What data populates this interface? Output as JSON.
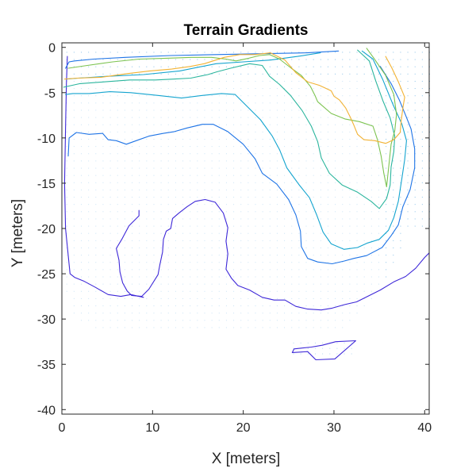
{
  "chart_data": {
    "type": "contour",
    "title": "Terrain Gradients",
    "xlabel": "X [meters]",
    "ylabel": "Y [meters]",
    "xlim": [
      0,
      40.5
    ],
    "ylim": [
      -40.5,
      0.5
    ],
    "x_ticks": [
      0,
      10,
      20,
      30,
      40
    ],
    "y_ticks": [
      0,
      -5,
      -10,
      -15,
      -20,
      -25,
      -30,
      -35,
      -40
    ],
    "grid": false,
    "box": true,
    "colors": {
      "frame": "#262626",
      "quiver": "#2b8fd6",
      "level_1": "#3e28d8",
      "level_2": "#1f74e6",
      "level_3": "#14a4cf",
      "level_4": "#2bb59d",
      "level_5": "#7cc350",
      "level_6": "#f2b233"
    },
    "contours": [
      {
        "level": 1,
        "points": [
          [
            8.5,
            -18
          ],
          [
            8.5,
            -18.6
          ],
          [
            7.4,
            -19.7
          ],
          [
            6.6,
            -21.2
          ],
          [
            6,
            -22.2
          ],
          [
            6.3,
            -23.5
          ],
          [
            6.4,
            -24.8
          ],
          [
            6.7,
            -26
          ],
          [
            7.2,
            -26.9
          ],
          [
            7.7,
            -27.4
          ],
          [
            8.8,
            -27.5
          ],
          [
            9.6,
            -26.7
          ],
          [
            10.6,
            -25.1
          ],
          [
            10.8,
            -24
          ],
          [
            11.1,
            -22.6
          ],
          [
            11.2,
            -21.2
          ],
          [
            11.5,
            -20.3
          ],
          [
            12,
            -20
          ],
          [
            12.2,
            -18.9
          ],
          [
            12.9,
            -18.3
          ],
          [
            13.8,
            -17.6
          ],
          [
            14.7,
            -17
          ],
          [
            15.8,
            -16.8
          ],
          [
            16.9,
            -17.1
          ],
          [
            17.8,
            -18.3
          ],
          [
            18.3,
            -19.9
          ],
          [
            18.1,
            -21.4
          ],
          [
            18.3,
            -22.8
          ],
          [
            18.1,
            -24.5
          ],
          [
            18.7,
            -25.5
          ],
          [
            19.4,
            -26.3
          ],
          [
            20.7,
            -26.8
          ],
          [
            22.1,
            -27.6
          ],
          [
            23.4,
            -27.9
          ],
          [
            24.6,
            -27.9
          ],
          [
            25.8,
            -28.6
          ],
          [
            27.1,
            -28.9
          ],
          [
            28.6,
            -29
          ],
          [
            29.8,
            -28.8
          ],
          [
            31.2,
            -28.4
          ],
          [
            32.5,
            -28.1
          ],
          [
            33.7,
            -27.5
          ],
          [
            35.1,
            -26.8
          ],
          [
            36.6,
            -25.9
          ],
          [
            37.9,
            -25.3
          ],
          [
            39,
            -24.4
          ],
          [
            40,
            -23.2
          ],
          [
            40.5,
            -22.7
          ]
        ]
      },
      {
        "level": 1,
        "points": [
          [
            0.6,
            -1
          ],
          [
            0.5,
            -4
          ],
          [
            0.4,
            -9
          ],
          [
            0.3,
            -15
          ],
          [
            0.4,
            -20
          ],
          [
            0.9,
            -25
          ],
          [
            1.4,
            -25.4
          ],
          [
            2.4,
            -25.8
          ],
          [
            3.7,
            -26.5
          ],
          [
            5.1,
            -27.3
          ],
          [
            6.5,
            -27.5
          ],
          [
            7.6,
            -27.3
          ],
          [
            9,
            -27.6
          ]
        ]
      },
      {
        "level": 1,
        "points": [
          [
            25.4,
            -33.7
          ],
          [
            27.1,
            -33.6
          ],
          [
            28,
            -34.5
          ],
          [
            30.1,
            -34.4
          ],
          [
            32.4,
            -32.4
          ],
          [
            30.2,
            -32.5
          ],
          [
            28.7,
            -32.9
          ],
          [
            27.5,
            -33.1
          ],
          [
            25.6,
            -33.3
          ],
          [
            25.4,
            -33.7
          ]
        ]
      },
      {
        "level": 2,
        "points": [
          [
            0.7,
            -12
          ],
          [
            0.8,
            -10
          ],
          [
            1.6,
            -9.4
          ],
          [
            3,
            -9.6
          ],
          [
            4.5,
            -9.5
          ],
          [
            5.1,
            -10.2
          ],
          [
            6,
            -10.3
          ],
          [
            7.1,
            -10.7
          ],
          [
            8.2,
            -10.3
          ],
          [
            9.6,
            -9.8
          ],
          [
            11.2,
            -9.5
          ],
          [
            12.4,
            -9.3
          ],
          [
            13.8,
            -8.9
          ],
          [
            15.5,
            -8.5
          ],
          [
            16.7,
            -8.5
          ],
          [
            18.3,
            -9.3
          ],
          [
            20,
            -10.7
          ],
          [
            21.3,
            -12.3
          ],
          [
            22.1,
            -13.9
          ],
          [
            23.7,
            -15.1
          ],
          [
            25,
            -16.8
          ],
          [
            25.8,
            -18.5
          ],
          [
            26.3,
            -20.3
          ],
          [
            26.4,
            -22
          ],
          [
            27.1,
            -23.3
          ],
          [
            28.2,
            -23.7
          ],
          [
            29.8,
            -23.9
          ],
          [
            31.1,
            -23.6
          ],
          [
            32.2,
            -23.3
          ],
          [
            33.6,
            -23
          ],
          [
            35.3,
            -22.1
          ],
          [
            36.3,
            -20.8
          ],
          [
            37.1,
            -19.6
          ],
          [
            37.6,
            -17.6
          ],
          [
            38.4,
            -15.7
          ],
          [
            38.9,
            -13.3
          ],
          [
            38.9,
            -11.2
          ],
          [
            38.5,
            -9
          ],
          [
            37.9,
            -7.5
          ],
          [
            37.2,
            -5.8
          ],
          [
            36.3,
            -4
          ],
          [
            35.1,
            -2.1
          ]
        ]
      },
      {
        "level": 2,
        "points": [
          [
            0.4,
            -2.3
          ],
          [
            0.8,
            -1.6
          ],
          [
            1.4,
            -1.5
          ],
          [
            3.5,
            -1.3
          ],
          [
            7,
            -1.1
          ],
          [
            12,
            -0.9
          ],
          [
            17,
            -0.8
          ],
          [
            22,
            -0.7
          ],
          [
            27,
            -0.6
          ],
          [
            30.5,
            -0.4
          ]
        ]
      },
      {
        "level": 3,
        "points": [
          [
            0.4,
            -5.2
          ],
          [
            1.2,
            -5.1
          ],
          [
            3,
            -5.1
          ],
          [
            5.3,
            -4.9
          ],
          [
            7.6,
            -5
          ],
          [
            10.5,
            -5.3
          ],
          [
            13.2,
            -5.6
          ],
          [
            15.6,
            -5.3
          ],
          [
            17.6,
            -5.1
          ],
          [
            19.1,
            -5.2
          ],
          [
            20.4,
            -6.5
          ],
          [
            21.9,
            -8
          ],
          [
            23.2,
            -9.8
          ],
          [
            24,
            -11.3
          ],
          [
            24.8,
            -13.3
          ],
          [
            26.1,
            -15.1
          ],
          [
            27.3,
            -16.6
          ],
          [
            28.1,
            -18.5
          ],
          [
            28.8,
            -20.4
          ],
          [
            29.7,
            -21.7
          ],
          [
            31.1,
            -22.3
          ],
          [
            32.6,
            -22.1
          ],
          [
            33.7,
            -21.6
          ],
          [
            35,
            -21.2
          ],
          [
            36,
            -20.2
          ],
          [
            36.6,
            -18.8
          ],
          [
            37.1,
            -17
          ],
          [
            37.5,
            -14.4
          ],
          [
            37.8,
            -12.4
          ],
          [
            38,
            -10.3
          ],
          [
            37.5,
            -8.5
          ],
          [
            36.5,
            -6.3
          ],
          [
            35.4,
            -3.6
          ],
          [
            34.3,
            -1.3
          ],
          [
            33.1,
            -0.4
          ]
        ]
      },
      {
        "level": 3,
        "points": [
          [
            0.5,
            -3.5
          ],
          [
            1.8,
            -3.4
          ],
          [
            5,
            -3.2
          ],
          [
            9,
            -3
          ],
          [
            13,
            -2.6
          ],
          [
            17,
            -1.8
          ],
          [
            20,
            -1.6
          ],
          [
            23,
            -1.4
          ],
          [
            26,
            -1
          ],
          [
            28.5,
            -0.6
          ]
        ]
      },
      {
        "level": 4,
        "points": [
          [
            0.2,
            -4.4
          ],
          [
            2,
            -4
          ],
          [
            4.8,
            -3.8
          ],
          [
            7.5,
            -3.6
          ],
          [
            10.3,
            -3.6
          ],
          [
            12.3,
            -3.5
          ],
          [
            14.2,
            -3.4
          ],
          [
            16.1,
            -3
          ],
          [
            17.1,
            -2.7
          ],
          [
            18.6,
            -2.3
          ],
          [
            20.7,
            -1.8
          ],
          [
            22.1,
            -2
          ],
          [
            22.9,
            -3.2
          ],
          [
            24,
            -4.1
          ],
          [
            25.2,
            -5.3
          ],
          [
            26.5,
            -7
          ],
          [
            27.5,
            -8.7
          ],
          [
            28.2,
            -10.4
          ],
          [
            28.6,
            -12.2
          ],
          [
            29.5,
            -13.9
          ],
          [
            30.9,
            -15.2
          ],
          [
            32.6,
            -16
          ],
          [
            34.1,
            -17
          ],
          [
            35,
            -17.8
          ],
          [
            35.8,
            -16.7
          ],
          [
            36.2,
            -15.2
          ],
          [
            36.3,
            -13.2
          ],
          [
            36.6,
            -11.5
          ],
          [
            36.7,
            -9.8
          ],
          [
            36.2,
            -7.8
          ],
          [
            35.4,
            -5.9
          ],
          [
            34.6,
            -3.7
          ],
          [
            33.9,
            -1.5
          ],
          [
            32.6,
            -0.3
          ]
        ]
      },
      {
        "level": 5,
        "points": [
          [
            0.7,
            -2.3
          ],
          [
            2.8,
            -2
          ],
          [
            5.6,
            -1.6
          ],
          [
            8.5,
            -1.3
          ],
          [
            11.5,
            -1.2
          ],
          [
            14.3,
            -1.1
          ],
          [
            16.5,
            -1.1
          ],
          [
            18.1,
            -1.3
          ],
          [
            19.2,
            -1.5
          ],
          [
            20.6,
            -1.2
          ],
          [
            21.8,
            -0.9
          ],
          [
            22.9,
            -0.8
          ],
          [
            24,
            -1.3
          ],
          [
            25.3,
            -2.3
          ],
          [
            26.4,
            -3.1
          ],
          [
            27.4,
            -4.3
          ],
          [
            27.9,
            -5.3
          ],
          [
            28.2,
            -6
          ],
          [
            29.7,
            -7.3
          ],
          [
            31.2,
            -7.9
          ],
          [
            32.8,
            -8.2
          ],
          [
            34.3,
            -8.7
          ],
          [
            34.8,
            -10.2
          ],
          [
            35.2,
            -12
          ],
          [
            35.5,
            -13.9
          ],
          [
            35.8,
            -15.4
          ],
          [
            36.1,
            -12.6
          ],
          [
            36.3,
            -10.7
          ],
          [
            36.7,
            -9.2
          ],
          [
            36.9,
            -7.4
          ],
          [
            36.6,
            -5.2
          ],
          [
            35.7,
            -3.1
          ],
          [
            34.4,
            -1.2
          ],
          [
            33.6,
            -0.1
          ]
        ]
      },
      {
        "level": 6,
        "points": [
          [
            0.3,
            -3.5
          ],
          [
            1.7,
            -3.4
          ],
          [
            4.3,
            -3.3
          ],
          [
            7.2,
            -2.9
          ],
          [
            9.7,
            -2.6
          ],
          [
            12.1,
            -2.4
          ],
          [
            14.2,
            -2.1
          ],
          [
            15.7,
            -1.8
          ],
          [
            17.9,
            -1.1
          ],
          [
            19.6,
            -0.8
          ],
          [
            21.3,
            -0.8
          ],
          [
            23,
            -0.6
          ],
          [
            24.6,
            -1.4
          ],
          [
            25.8,
            -2.8
          ],
          [
            27.1,
            -3.8
          ],
          [
            28.4,
            -4.2
          ],
          [
            29.7,
            -4.8
          ],
          [
            30,
            -5.4
          ],
          [
            30.6,
            -5.8
          ],
          [
            31.3,
            -6.7
          ],
          [
            31.8,
            -7.7
          ],
          [
            32.2,
            -8.6
          ],
          [
            32.6,
            -9.6
          ],
          [
            33.3,
            -10.2
          ],
          [
            34.5,
            -10.3
          ],
          [
            35.7,
            -10.6
          ],
          [
            36.6,
            -10.2
          ],
          [
            37.3,
            -9.4
          ],
          [
            37.4,
            -8.2
          ],
          [
            37.6,
            -6.7
          ],
          [
            37.8,
            -5.5
          ],
          [
            37.1,
            -3.8
          ],
          [
            36.4,
            -2.3
          ],
          [
            35.7,
            -1
          ]
        ]
      }
    ]
  }
}
